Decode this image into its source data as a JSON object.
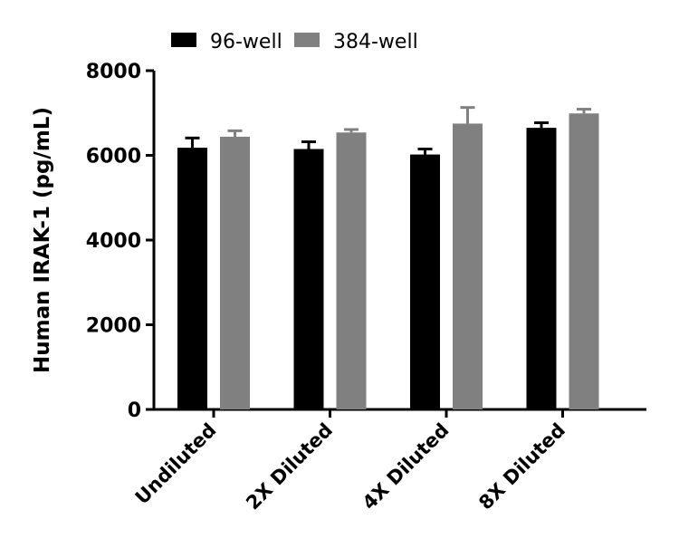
{
  "chart_data": {
    "type": "bar",
    "title": "",
    "xlabel": "",
    "ylabel": "Human IRAK-1 (pg/mL)",
    "ylim": [
      0,
      8000
    ],
    "yticks": [
      0,
      2000,
      4000,
      6000,
      8000
    ],
    "grid": false,
    "legend_placement": "top",
    "categories": [
      "Undiluted",
      "2X Diluted",
      "4X Diluted",
      "8X Diluted"
    ],
    "series": [
      {
        "name": "96-well",
        "color": "#000000",
        "values": [
          6180,
          6150,
          6020,
          6650
        ],
        "error": [
          230,
          170,
          130,
          120
        ]
      },
      {
        "name": "384-well",
        "color": "#808080",
        "values": [
          6440,
          6540,
          6750,
          6990
        ],
        "error": [
          140,
          70,
          380,
          100
        ]
      }
    ]
  }
}
